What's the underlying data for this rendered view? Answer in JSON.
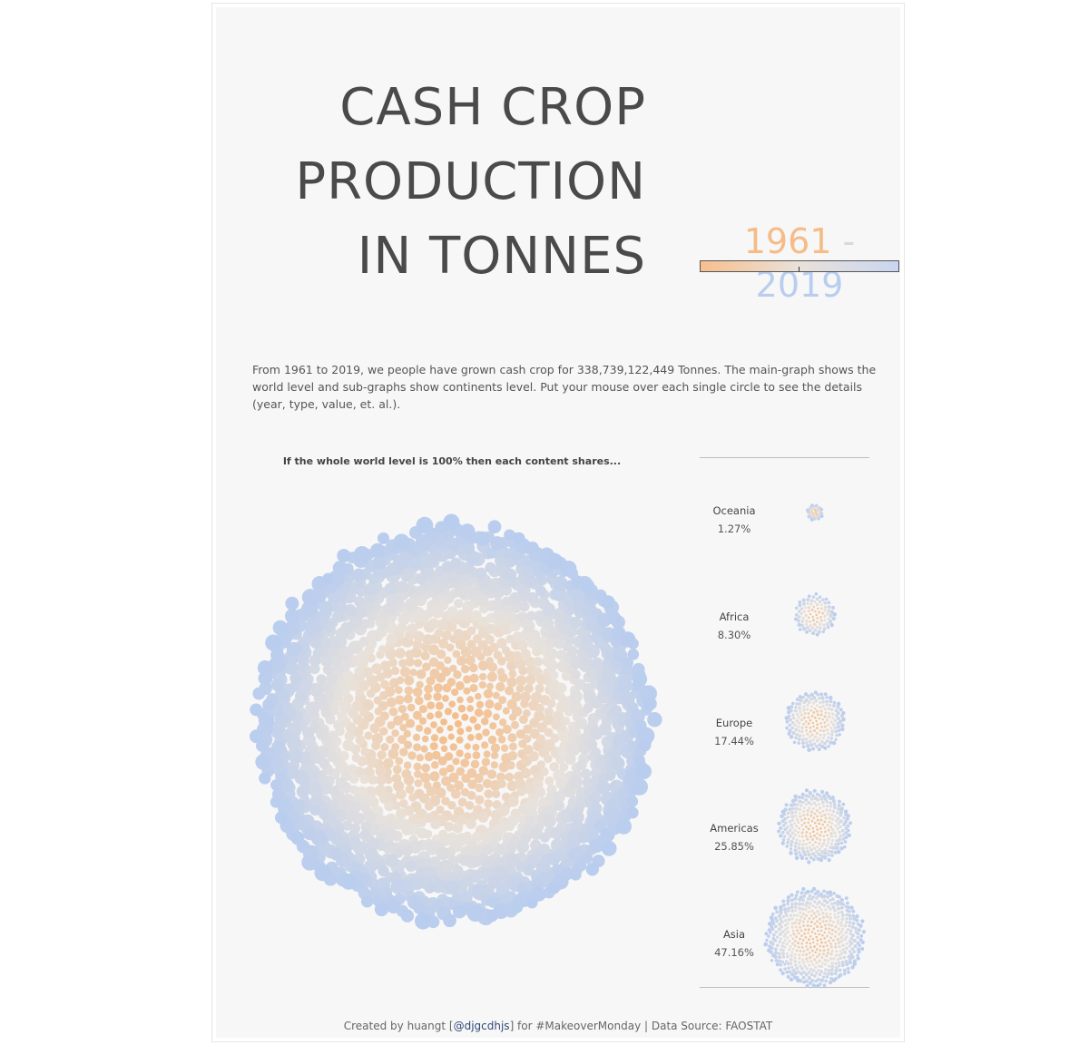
{
  "title": {
    "line1": "CASH CROP",
    "line2": "PRODUCTION",
    "line3": "IN TONNES"
  },
  "year_range": {
    "start": "1961",
    "separator": "-",
    "end": "2019"
  },
  "colors": {
    "start": "#f5bc87",
    "mid": "#e8e2dc",
    "end": "#b9cdef"
  },
  "description": "From 1961 to 2019, we people have grown cash crop for 338,739,122,449 Tonnes. The main-graph shows the world level and sub-graphs show continents level. Put your mouse over each single circle to see the details (year, type, value, et. al.).",
  "subtitle": "If the whole world level is 100% then each content shares...",
  "chart_data": {
    "type": "bubble-pack",
    "title": "CASH CROP PRODUCTION IN TONNES",
    "color_scale": {
      "from": "1961",
      "to": "2019"
    },
    "total_tonnes": 338739122449,
    "categories": [
      "Oceania",
      "Africa",
      "Europe",
      "Americas",
      "Asia"
    ],
    "values": [
      1.27,
      8.3,
      17.44,
      25.85,
      47.16
    ],
    "unit": "%"
  },
  "continents": [
    {
      "name": "Oceania",
      "share": "1.27%"
    },
    {
      "name": "Africa",
      "share": "8.30%"
    },
    {
      "name": "Europe",
      "share": "17.44%"
    },
    {
      "name": "Americas",
      "share": "25.85%"
    },
    {
      "name": "Asia",
      "share": "47.16%"
    }
  ],
  "footer": {
    "prefix": "Created by huangt [",
    "handle": "@djgcdhjs",
    "suffix": "] for #MakeoverMonday | Data Source: FAOSTAT"
  }
}
